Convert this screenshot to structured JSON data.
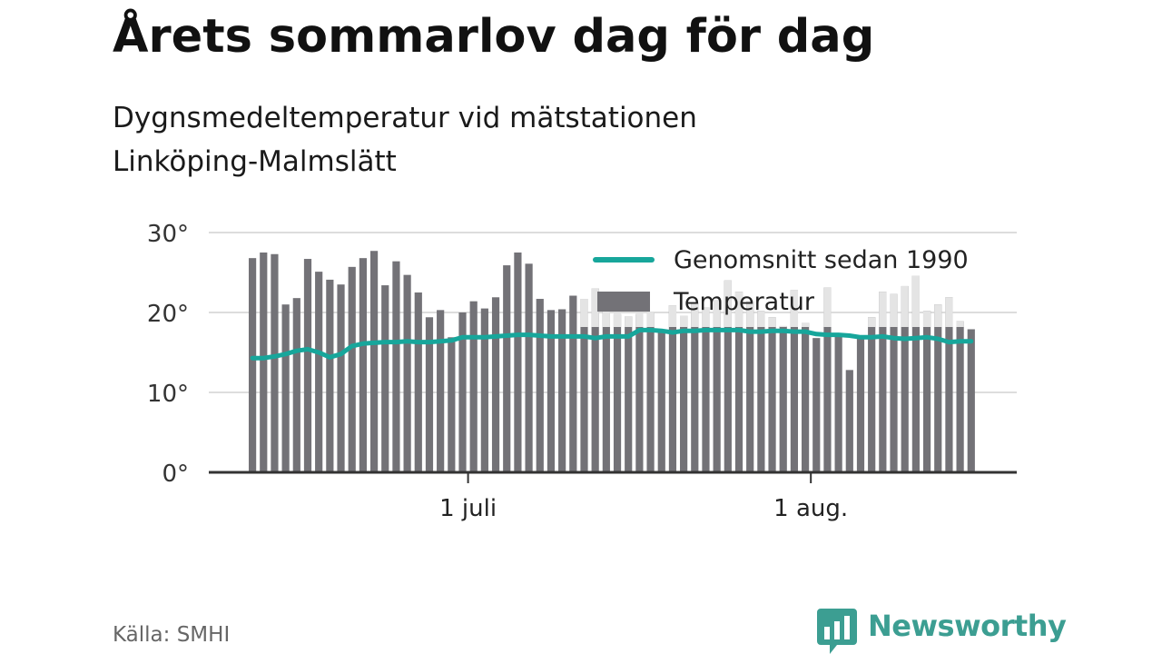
{
  "title": "Årets sommarlov dag för dag",
  "subtitle_lines": [
    "Dygnsmedeltemperatur vid mätstationen",
    "Linköping-Malmslätt"
  ],
  "source": "Källa: SMHI",
  "logo": {
    "name": "Newsworthy",
    "icon": "newsworthy-chart-bubble-icon"
  },
  "colors": {
    "bar": "#737277",
    "bar_highlight": "#e4e4e4",
    "line": "#17a69b",
    "grid": "#dddddd",
    "axis": "#333333",
    "brand": "#3c9e92"
  },
  "chart_data": {
    "type": "bar",
    "title": "Årets sommarlov dag för dag",
    "subtitle": "Dygnsmedeltemperatur vid mätstationen Linköping-Malmslätt",
    "ylim": [
      0,
      30
    ],
    "yticks": [
      0,
      10,
      20,
      30
    ],
    "ytick_labels": [
      "0°",
      "10°",
      "20°",
      "30°"
    ],
    "x_start": "2022-06-11",
    "xticks": [
      {
        "date": "2022-07-01",
        "label": "1 juli"
      },
      {
        "date": "2022-08-01",
        "label": "1 aug."
      }
    ],
    "grid": true,
    "legend_position": "top-right",
    "series": [
      {
        "name": "Temperatur",
        "type": "bar",
        "values": [
          26.8,
          27.5,
          27.3,
          21.0,
          21.8,
          26.7,
          25.1,
          24.1,
          23.5,
          25.7,
          26.8,
          27.7,
          23.4,
          26.4,
          24.7,
          22.5,
          19.4,
          20.3,
          16.9,
          20.0,
          21.4,
          20.5,
          21.9,
          25.9,
          27.5,
          26.1,
          21.7,
          20.3,
          20.4,
          22.1,
          21.7,
          23.0,
          20.2,
          19.8,
          19.5,
          19.8,
          20.0,
          17.5,
          20.9,
          19.6,
          21.2,
          20.6,
          21.5,
          24.0,
          22.6,
          21.4,
          20.2,
          19.4,
          18.3,
          22.8,
          18.7,
          16.8,
          23.1,
          17.1,
          12.8,
          17.1,
          19.4,
          22.6,
          22.3,
          23.3,
          24.6,
          20.2,
          21.0,
          21.9,
          18.9,
          17.9
        ]
      },
      {
        "name": "Genomsnitt sedan 1990",
        "type": "line",
        "values": [
          14.3,
          14.3,
          14.5,
          14.8,
          15.2,
          15.4,
          15.0,
          14.4,
          14.8,
          15.8,
          16.1,
          16.2,
          16.3,
          16.3,
          16.4,
          16.3,
          16.3,
          16.4,
          16.5,
          16.9,
          16.9,
          16.9,
          17.0,
          17.1,
          17.2,
          17.2,
          17.1,
          17.0,
          17.0,
          17.0,
          17.0,
          16.8,
          17.0,
          17.0,
          17.0,
          17.8,
          17.8,
          17.7,
          17.5,
          17.7,
          17.7,
          17.8,
          17.8,
          17.8,
          17.8,
          17.6,
          17.6,
          17.7,
          17.7,
          17.6,
          17.6,
          17.3,
          17.2,
          17.2,
          17.1,
          16.9,
          16.9,
          17.0,
          16.8,
          16.7,
          16.8,
          16.9,
          16.7,
          16.3,
          16.4,
          16.4
        ]
      }
    ]
  }
}
